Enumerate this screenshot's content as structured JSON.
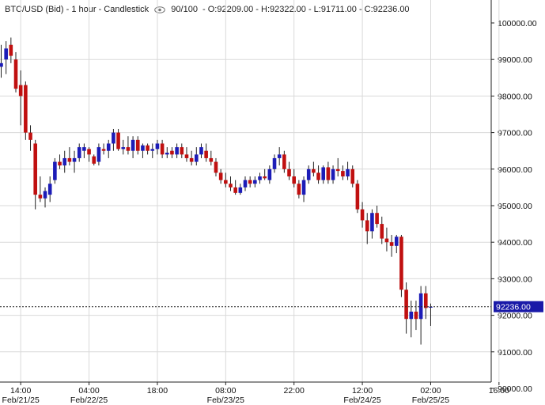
{
  "header": {
    "symbol": "BTC/USD (Bid) - 1 hour - Candlestick",
    "count": "90/100",
    "ohlc": "- O:92209.00 - H:92322.00 - L:91711.00 - C:92236.00"
  },
  "colors": {
    "up": "#1c1cb8",
    "down": "#c01010",
    "grid": "#d9d9d9",
    "axis": "#222222",
    "last_price_bg": "#1919a8"
  },
  "chart_data": {
    "type": "candlestick",
    "title": "BTC/USD (Bid) - 1 hour - Candlestick",
    "ylim": [
      90000,
      100500
    ],
    "y_ticks": [
      "100000.00",
      "99000.00",
      "98000.00",
      "97000.00",
      "96000.00",
      "95000.00",
      "94000.00",
      "93000.00",
      "92000.00",
      "91000.00",
      "90000.00"
    ],
    "x_ticks": [
      {
        "time": "14:00",
        "date": "Feb/21/25",
        "index": 4
      },
      {
        "time": "04:00",
        "date": "Feb/22/25",
        "index": 18
      },
      {
        "time": "18:00",
        "date": "",
        "index": 32
      },
      {
        "time": "08:00",
        "date": "Feb/23/25",
        "index": 46
      },
      {
        "time": "22:00",
        "date": "",
        "index": 60
      },
      {
        "time": "12:00",
        "date": "Feb/24/25",
        "index": 74
      },
      {
        "time": "02:00",
        "date": "Feb/25/25",
        "index": 88
      },
      {
        "time": "16:00",
        "date": "",
        "index": 102
      }
    ],
    "last_price": "92236.00",
    "grid": true,
    "candles": [
      [
        98800,
        99400,
        98500,
        98900
      ],
      [
        99000,
        99500,
        98600,
        99300
      ],
      [
        99400,
        99600,
        98900,
        99100
      ],
      [
        99000,
        99200,
        98100,
        98200
      ],
      [
        98300,
        98700,
        97200,
        98000
      ],
      [
        98300,
        98400,
        96800,
        97000
      ],
      [
        97000,
        97200,
        96500,
        96800
      ],
      [
        96700,
        96800,
        94900,
        95300
      ],
      [
        95300,
        95800,
        95100,
        95200
      ],
      [
        95200,
        95500,
        94950,
        95400
      ],
      [
        95300,
        95800,
        95100,
        95600
      ],
      [
        95700,
        96300,
        95600,
        96200
      ],
      [
        96200,
        96400,
        96000,
        96100
      ],
      [
        96100,
        96500,
        95900,
        96300
      ],
      [
        96300,
        96600,
        96100,
        96200
      ],
      [
        96200,
        96500,
        95900,
        96300
      ],
      [
        96300,
        96700,
        96200,
        96600
      ],
      [
        96500,
        96700,
        96300,
        96600
      ],
      [
        96550,
        96600,
        96200,
        96400
      ],
      [
        96350,
        96400,
        96100,
        96150
      ],
      [
        96200,
        96700,
        96100,
        96600
      ],
      [
        96550,
        96700,
        96400,
        96500
      ],
      [
        96500,
        96800,
        96300,
        96700
      ],
      [
        96700,
        97100,
        96500,
        97000
      ],
      [
        97000,
        97100,
        96500,
        96550
      ],
      [
        96550,
        96800,
        96400,
        96600
      ],
      [
        96600,
        96900,
        96400,
        96500
      ],
      [
        96500,
        96900,
        96300,
        96800
      ],
      [
        96800,
        96900,
        96400,
        96500
      ],
      [
        96500,
        96700,
        96300,
        96650
      ],
      [
        96650,
        96700,
        96400,
        96500
      ],
      [
        96500,
        96700,
        96300,
        96550
      ],
      [
        96550,
        96800,
        96400,
        96700
      ],
      [
        96700,
        96800,
        96300,
        96400
      ],
      [
        96400,
        96600,
        96300,
        96450
      ],
      [
        96500,
        96600,
        96300,
        96400
      ],
      [
        96400,
        96700,
        96300,
        96600
      ],
      [
        96600,
        96700,
        96300,
        96400
      ],
      [
        96400,
        96600,
        96200,
        96300
      ],
      [
        96300,
        96500,
        96100,
        96200
      ],
      [
        96200,
        96600,
        96100,
        96400
      ],
      [
        96400,
        96700,
        96300,
        96600
      ],
      [
        96500,
        96700,
        96200,
        96300
      ],
      [
        96300,
        96500,
        96100,
        96200
      ],
      [
        96200,
        96300,
        95800,
        95900
      ],
      [
        95900,
        96000,
        95600,
        95700
      ],
      [
        95700,
        95900,
        95500,
        95600
      ],
      [
        95600,
        95800,
        95400,
        95500
      ],
      [
        95500,
        95700,
        95300,
        95350
      ],
      [
        95350,
        95600,
        95300,
        95500
      ],
      [
        95500,
        95800,
        95400,
        95700
      ],
      [
        95700,
        95800,
        95500,
        95600
      ],
      [
        95600,
        95800,
        95500,
        95700
      ],
      [
        95700,
        95900,
        95600,
        95800
      ],
      [
        95800,
        96000,
        95700,
        95750
      ],
      [
        95700,
        96100,
        95600,
        96000
      ],
      [
        96000,
        96400,
        95900,
        96300
      ],
      [
        96300,
        96600,
        96100,
        96400
      ],
      [
        96400,
        96500,
        95900,
        96000
      ],
      [
        96000,
        96200,
        95700,
        95800
      ],
      [
        95800,
        96000,
        95500,
        95600
      ],
      [
        95600,
        95700,
        95200,
        95300
      ],
      [
        95300,
        95800,
        95100,
        95700
      ],
      [
        95700,
        96100,
        95600,
        96000
      ],
      [
        96000,
        96200,
        95800,
        95900
      ],
      [
        95900,
        96100,
        95600,
        95700
      ],
      [
        95700,
        96100,
        95600,
        96050
      ],
      [
        96050,
        96200,
        95600,
        95700
      ],
      [
        95700,
        96100,
        95600,
        96000
      ],
      [
        96000,
        96300,
        95800,
        95950
      ],
      [
        95950,
        96100,
        95700,
        95800
      ],
      [
        95800,
        96200,
        95700,
        96000
      ],
      [
        96000,
        96100,
        95500,
        95600
      ],
      [
        95600,
        95700,
        94800,
        94900
      ],
      [
        94900,
        95100,
        94400,
        94600
      ],
      [
        94600,
        94800,
        93950,
        94300
      ],
      [
        94300,
        94900,
        94100,
        94800
      ],
      [
        94800,
        95000,
        94400,
        94500
      ],
      [
        94500,
        94700,
        93950,
        94100
      ],
      [
        94100,
        94400,
        93750,
        94000
      ],
      [
        94000,
        94200,
        93600,
        93900
      ],
      [
        93900,
        94200,
        93700,
        94150
      ],
      [
        94150,
        94200,
        92500,
        92700
      ],
      [
        92700,
        92900,
        91500,
        91900
      ],
      [
        91900,
        92400,
        91400,
        92100
      ],
      [
        92100,
        92400,
        91600,
        91900
      ],
      [
        91900,
        92800,
        91200,
        92600
      ],
      [
        92600,
        92800,
        91900,
        92200
      ],
      [
        92209,
        92322,
        91711,
        92236
      ]
    ]
  }
}
